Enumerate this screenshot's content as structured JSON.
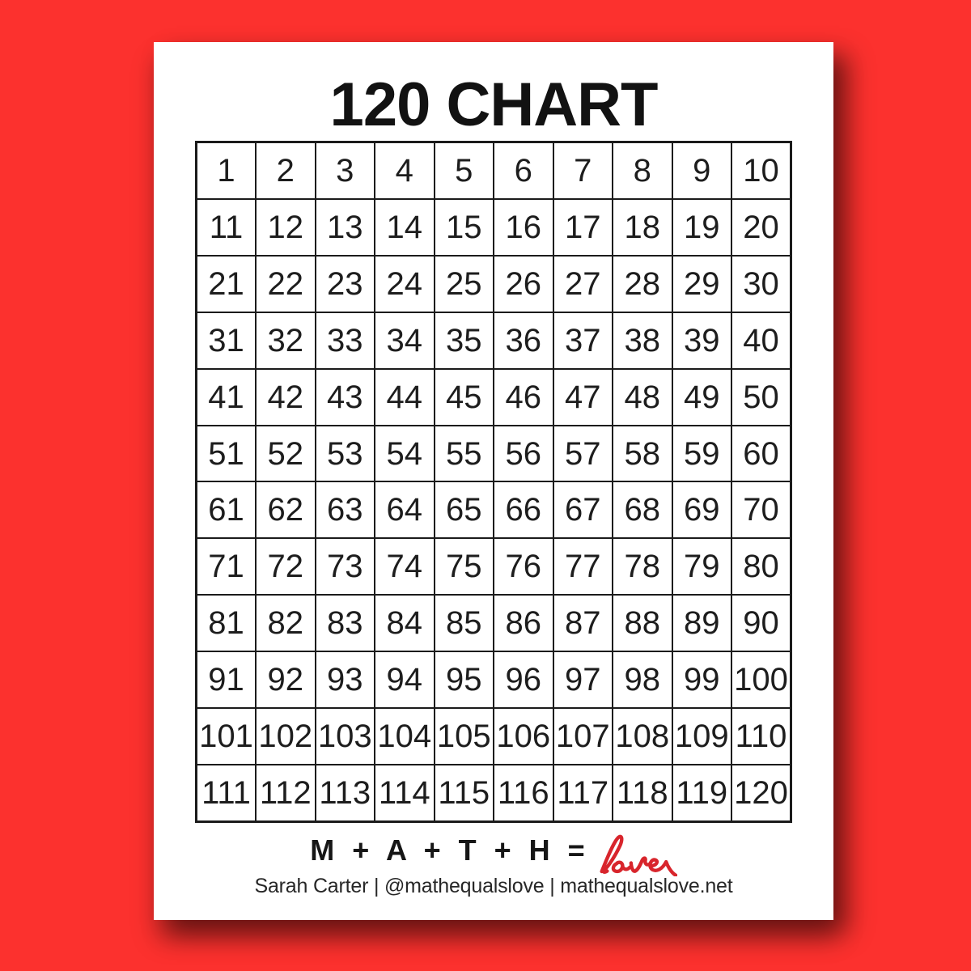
{
  "page": {
    "title": "120 CHART",
    "background_color": "#fc312e",
    "paper_color": "#ffffff",
    "grid_line_color": "#1b1b1b",
    "text_color": "#1d1d1d"
  },
  "grid": {
    "rows": 12,
    "cols": 10,
    "first_number": 1,
    "last_number": 120,
    "numbers": [
      [
        1,
        2,
        3,
        4,
        5,
        6,
        7,
        8,
        9,
        10
      ],
      [
        11,
        12,
        13,
        14,
        15,
        16,
        17,
        18,
        19,
        20
      ],
      [
        21,
        22,
        23,
        24,
        25,
        26,
        27,
        28,
        29,
        30
      ],
      [
        31,
        32,
        33,
        34,
        35,
        36,
        37,
        38,
        39,
        40
      ],
      [
        41,
        42,
        43,
        44,
        45,
        46,
        47,
        48,
        49,
        50
      ],
      [
        51,
        52,
        53,
        54,
        55,
        56,
        57,
        58,
        59,
        60
      ],
      [
        61,
        62,
        63,
        64,
        65,
        66,
        67,
        68,
        69,
        70
      ],
      [
        71,
        72,
        73,
        74,
        75,
        76,
        77,
        78,
        79,
        80
      ],
      [
        81,
        82,
        83,
        84,
        85,
        86,
        87,
        88,
        89,
        90
      ],
      [
        91,
        92,
        93,
        94,
        95,
        96,
        97,
        98,
        99,
        100
      ],
      [
        101,
        102,
        103,
        104,
        105,
        106,
        107,
        108,
        109,
        110
      ],
      [
        111,
        112,
        113,
        114,
        115,
        116,
        117,
        118,
        119,
        120
      ]
    ]
  },
  "footer": {
    "equation_prefix": "M + A + T + H =",
    "equation_script_word": "love",
    "love_color": "#d8252c",
    "byline": "Sarah Carter | @mathequalslove | mathequalslove.net"
  }
}
